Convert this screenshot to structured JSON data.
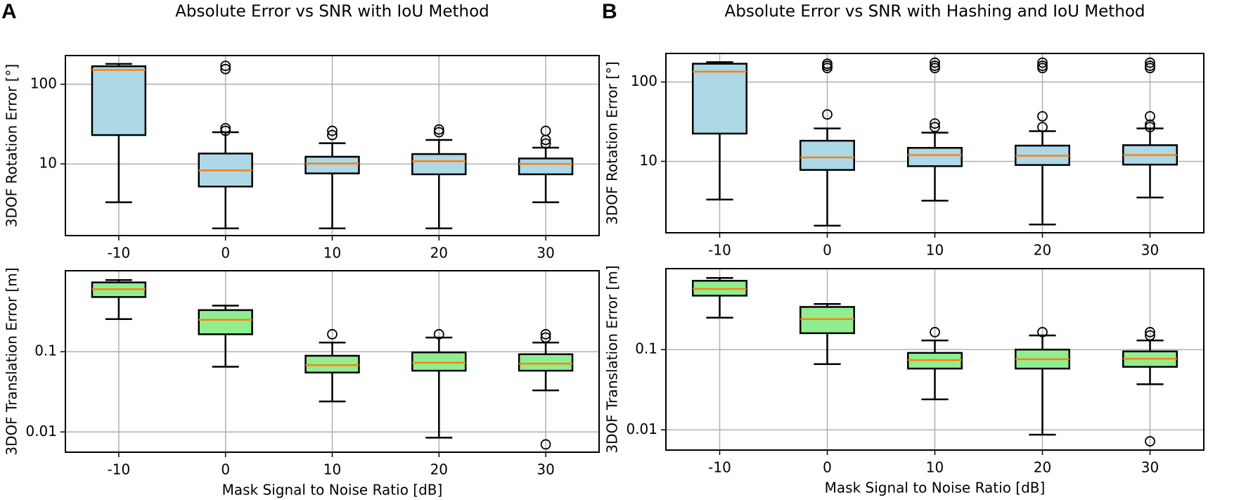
{
  "chart_data": [
    {
      "type": "box",
      "panel_label": "A",
      "title": "Absolute Error vs SNR with IoU Method",
      "ylabel": "3DOF Rotation Error [°]",
      "categories": [
        "-10",
        "0",
        "10",
        "20",
        "30"
      ],
      "boxes": [
        {
          "min": 3.3,
          "q1": 23,
          "median": 151,
          "q3": 168,
          "max": 180,
          "outliers": []
        },
        {
          "min": 1.55,
          "q1": 5.2,
          "median": 8.3,
          "q3": 13.5,
          "max": 25,
          "outliers": [
            26,
            28,
            155,
            170
          ]
        },
        {
          "min": 1.55,
          "q1": 7.6,
          "median": 10.1,
          "q3": 12.3,
          "max": 18.2,
          "outliers": [
            23,
            26
          ]
        },
        {
          "min": 1.55,
          "q1": 7.4,
          "median": 10.8,
          "q3": 13.3,
          "max": 20,
          "outliers": [
            25,
            27
          ]
        },
        {
          "min": 3.3,
          "q1": 7.4,
          "median": 10,
          "q3": 11.7,
          "max": 16,
          "outliers": [
            18,
            20,
            26
          ]
        }
      ],
      "box_color": "#add8e6",
      "median_color": "#ff7f0e",
      "log_scale": true,
      "grid": true,
      "ylim": [
        1.26,
        229
      ],
      "yticks": [
        10,
        100
      ]
    },
    {
      "type": "box",
      "ylabel": "3DOF Translation Error [m]",
      "xlabel": "Mask Signal to Noise Ratio [dB]",
      "categories": [
        "-10",
        "0",
        "10",
        "20",
        "30"
      ],
      "boxes": [
        {
          "min": 0.255,
          "q1": 0.48,
          "median": 0.6,
          "q3": 0.73,
          "max": 0.78,
          "outliers": []
        },
        {
          "min": 0.065,
          "q1": 0.165,
          "median": 0.25,
          "q3": 0.33,
          "max": 0.375,
          "outliers": []
        },
        {
          "min": 0.024,
          "q1": 0.055,
          "median": 0.068,
          "q3": 0.089,
          "max": 0.13,
          "outliers": [
            0.165
          ]
        },
        {
          "min": 0.0085,
          "q1": 0.058,
          "median": 0.073,
          "q3": 0.098,
          "max": 0.15,
          "outliers": [
            0.165
          ]
        },
        {
          "min": 0.033,
          "q1": 0.058,
          "median": 0.071,
          "q3": 0.093,
          "max": 0.13,
          "outliers": [
            0.007,
            0.15,
            0.165
          ]
        }
      ],
      "box_color": "#90ee90",
      "median_color": "#ff7f0e",
      "log_scale": true,
      "grid": true,
      "ylim": [
        0.0056,
        1.02
      ],
      "yticks": [
        0.01,
        0.1
      ]
    },
    {
      "type": "box",
      "panel_label": "B",
      "title": "Absolute Error vs SNR with Hashing and IoU Method",
      "ylabel": "3DOF Rotation Error [°]",
      "categories": [
        "-10",
        "0",
        "10",
        "20",
        "30"
      ],
      "boxes": [
        {
          "min": 3.3,
          "q1": 22.4,
          "median": 135,
          "q3": 170,
          "max": 178,
          "outliers": []
        },
        {
          "min": 1.55,
          "q1": 7.8,
          "median": 11.2,
          "q3": 18.2,
          "max": 26,
          "outliers": [
            39,
            150,
            160,
            170
          ]
        },
        {
          "min": 3.2,
          "q1": 8.7,
          "median": 12,
          "q3": 14.8,
          "max": 23,
          "outliers": [
            27,
            30,
            150,
            160,
            175
          ]
        },
        {
          "min": 1.6,
          "q1": 9,
          "median": 11.8,
          "q3": 15.8,
          "max": 24,
          "outliers": [
            27,
            37,
            150,
            160,
            175
          ]
        },
        {
          "min": 3.5,
          "q1": 9.1,
          "median": 12,
          "q3": 16,
          "max": 26,
          "outliers": [
            27,
            29,
            37,
            150,
            160,
            175
          ]
        }
      ],
      "box_color": "#add8e6",
      "median_color": "#ff7f0e",
      "log_scale": true,
      "grid": true,
      "ylim": [
        1.26,
        229
      ],
      "yticks": [
        10,
        100
      ]
    },
    {
      "type": "box",
      "ylabel": "3DOF Translation Error [m]",
      "xlabel": "Mask Signal to Noise Ratio [dB]",
      "categories": [
        "-10",
        "0",
        "10",
        "20",
        "30"
      ],
      "boxes": [
        {
          "min": 0.25,
          "q1": 0.47,
          "median": 0.57,
          "q3": 0.72,
          "max": 0.78,
          "outliers": []
        },
        {
          "min": 0.066,
          "q1": 0.16,
          "median": 0.24,
          "q3": 0.34,
          "max": 0.37,
          "outliers": []
        },
        {
          "min": 0.024,
          "q1": 0.058,
          "median": 0.074,
          "q3": 0.091,
          "max": 0.13,
          "outliers": [
            0.165
          ]
        },
        {
          "min": 0.0087,
          "q1": 0.058,
          "median": 0.076,
          "q3": 0.1,
          "max": 0.15,
          "outliers": [
            0.165
          ]
        },
        {
          "min": 0.037,
          "q1": 0.061,
          "median": 0.077,
          "q3": 0.095,
          "max": 0.13,
          "outliers": [
            0.0072,
            0.15,
            0.165
          ]
        }
      ],
      "box_color": "#90ee90",
      "median_color": "#ff7f0e",
      "log_scale": true,
      "grid": true,
      "ylim": [
        0.0056,
        1.02
      ],
      "yticks": [
        0.01,
        0.1
      ]
    }
  ]
}
